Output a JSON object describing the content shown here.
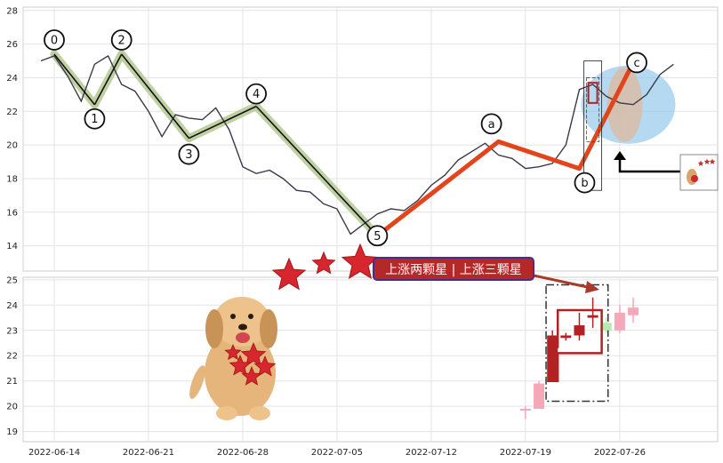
{
  "chart_data": [
    {
      "type": "line",
      "panel": "upper",
      "ylim": [
        12.5,
        28.2
      ],
      "yticks": [
        "14",
        "16",
        "18",
        "20",
        "22",
        "24",
        "26",
        "28"
      ],
      "price_series": {
        "x": [
          "2022-06-13",
          "2022-06-14",
          "2022-06-15",
          "2022-06-16",
          "2022-06-17",
          "2022-06-18",
          "2022-06-19",
          "2022-06-20",
          "2022-06-21",
          "2022-06-22",
          "2022-06-23",
          "2022-06-24",
          "2022-06-25",
          "2022-06-26",
          "2022-06-27",
          "2022-06-28",
          "2022-06-29",
          "2022-06-30",
          "2022-07-01",
          "2022-07-02",
          "2022-07-03",
          "2022-07-04",
          "2022-07-05",
          "2022-07-06",
          "2022-07-07",
          "2022-07-08",
          "2022-07-09",
          "2022-07-10",
          "2022-07-11",
          "2022-07-12",
          "2022-07-13",
          "2022-07-14",
          "2022-07-15",
          "2022-07-16",
          "2022-07-17",
          "2022-07-18",
          "2022-07-19",
          "2022-07-20",
          "2022-07-21",
          "2022-07-22",
          "2022-07-23",
          "2022-07-24",
          "2022-07-25",
          "2022-07-26",
          "2022-07-27",
          "2022-07-28",
          "2022-07-29",
          "2022-07-30"
        ],
        "values": [
          25.0,
          25.3,
          24.1,
          22.6,
          24.8,
          25.3,
          23.6,
          23.2,
          22.0,
          20.5,
          21.8,
          21.6,
          21.5,
          22.2,
          20.9,
          18.7,
          18.3,
          18.5,
          18.0,
          17.3,
          17.2,
          16.5,
          16.2,
          14.7,
          15.3,
          15.9,
          16.2,
          16.1,
          16.7,
          17.6,
          18.2,
          19.1,
          19.6,
          20.1,
          19.4,
          19.2,
          18.6,
          18.7,
          18.9,
          20.0,
          23.3,
          23.6,
          22.9,
          22.5,
          22.4,
          23.0,
          24.2,
          24.8
        ]
      },
      "wave_points": [
        {
          "label": "0",
          "x": "2022-06-14",
          "y": 25.4
        },
        {
          "label": "1",
          "x": "2022-06-17",
          "y": 22.4
        },
        {
          "label": "2",
          "x": "2022-06-19",
          "y": 25.4
        },
        {
          "label": "3",
          "x": "2022-06-24",
          "y": 20.4
        },
        {
          "label": "4",
          "x": "2022-06-29",
          "y": 22.3
        },
        {
          "label": "5",
          "x": "2022-07-08",
          "y": 14.6
        },
        {
          "label": "a",
          "x": "2022-07-17",
          "y": 20.2
        },
        {
          "label": "b",
          "x": "2022-07-23",
          "y": 18.6
        },
        {
          "label": "c",
          "x": "2022-07-27",
          "y": 24.9
        }
      ],
      "colors": {
        "price": "#3a3a4a",
        "impulse": "#111111",
        "impulse_band": "#b9cc9a",
        "correction": "#e2451c",
        "ellipse": "#8cc4ea"
      }
    },
    {
      "type": "candlestick",
      "panel": "lower",
      "ylim": [
        18.6,
        25.1
      ],
      "yticks": [
        "19",
        "20",
        "21",
        "22",
        "23",
        "24",
        "25"
      ],
      "xticks": [
        "2022-06-14",
        "2022-06-21",
        "2022-06-28",
        "2022-07-05",
        "2022-07-12",
        "2022-07-19",
        "2022-07-26"
      ],
      "candles": [
        {
          "x": "2022-07-19",
          "open": 19.9,
          "close": 19.9,
          "high": 20.0,
          "low": 19.5,
          "tone": "light"
        },
        {
          "x": "2022-07-20",
          "open": 19.9,
          "close": 20.9,
          "high": 21.0,
          "low": 19.9,
          "tone": "light"
        },
        {
          "x": "2022-07-21",
          "open": 21.0,
          "close": 22.8,
          "high": 23.0,
          "low": 21.0,
          "tone": "dark"
        },
        {
          "x": "2022-07-22",
          "open": 22.7,
          "close": 22.8,
          "high": 22.9,
          "low": 22.6,
          "tone": "dark"
        },
        {
          "x": "2022-07-23",
          "open": 22.8,
          "close": 23.2,
          "high": 23.7,
          "low": 22.6,
          "tone": "dark"
        },
        {
          "x": "2022-07-24",
          "open": 23.5,
          "close": 23.6,
          "high": 24.3,
          "low": 23.1,
          "tone": "dark"
        },
        {
          "x": "2022-07-25",
          "open": 23.3,
          "close": 23.0,
          "high": 23.5,
          "low": 22.9,
          "tone": "green"
        },
        {
          "x": "2022-07-26",
          "open": 23.0,
          "close": 23.7,
          "high": 24.0,
          "low": 22.9,
          "tone": "light"
        },
        {
          "x": "2022-07-27",
          "open": 23.6,
          "close": 23.9,
          "high": 24.3,
          "low": 23.3,
          "tone": "light"
        }
      ],
      "colors": {
        "dark": "#b22222",
        "light": "#f4a8b8",
        "green": "#b8eab0",
        "box": "#333333"
      }
    }
  ],
  "banner": {
    "text": "上涨两颗星 | 上涨三颗星",
    "background": "#b52828",
    "border": "#4b2b8c"
  }
}
